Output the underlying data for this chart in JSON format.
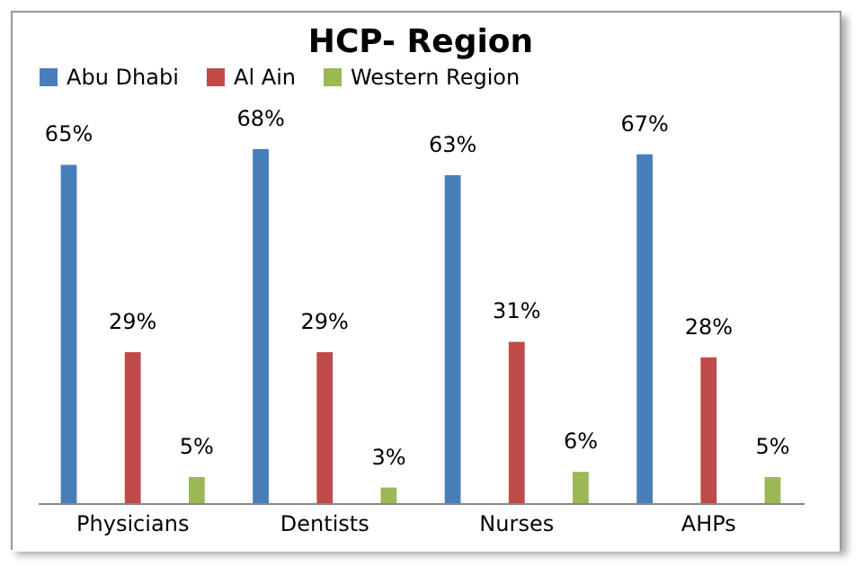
{
  "chart_data": {
    "type": "bar",
    "title": "HCP- Region",
    "categories": [
      "Physicians",
      "Dentists",
      "Nurses",
      "AHPs"
    ],
    "series": [
      {
        "name": "Abu Dhabi",
        "color": "#4a7ebb",
        "values": [
          65,
          68,
          63,
          67
        ],
        "value_labels": [
          "65%",
          "68%",
          "63%",
          "67%"
        ]
      },
      {
        "name": "Al Ain",
        "color": "#be4b48",
        "values": [
          29,
          29,
          31,
          28
        ],
        "value_labels": [
          "29%",
          "29%",
          "31%",
          "28%"
        ]
      },
      {
        "name": "Western Region",
        "color": "#98b954",
        "values": [
          5,
          3,
          6,
          5
        ],
        "value_labels": [
          "5%",
          "3%",
          "6%",
          "5%"
        ]
      }
    ],
    "legend": "top"
  }
}
